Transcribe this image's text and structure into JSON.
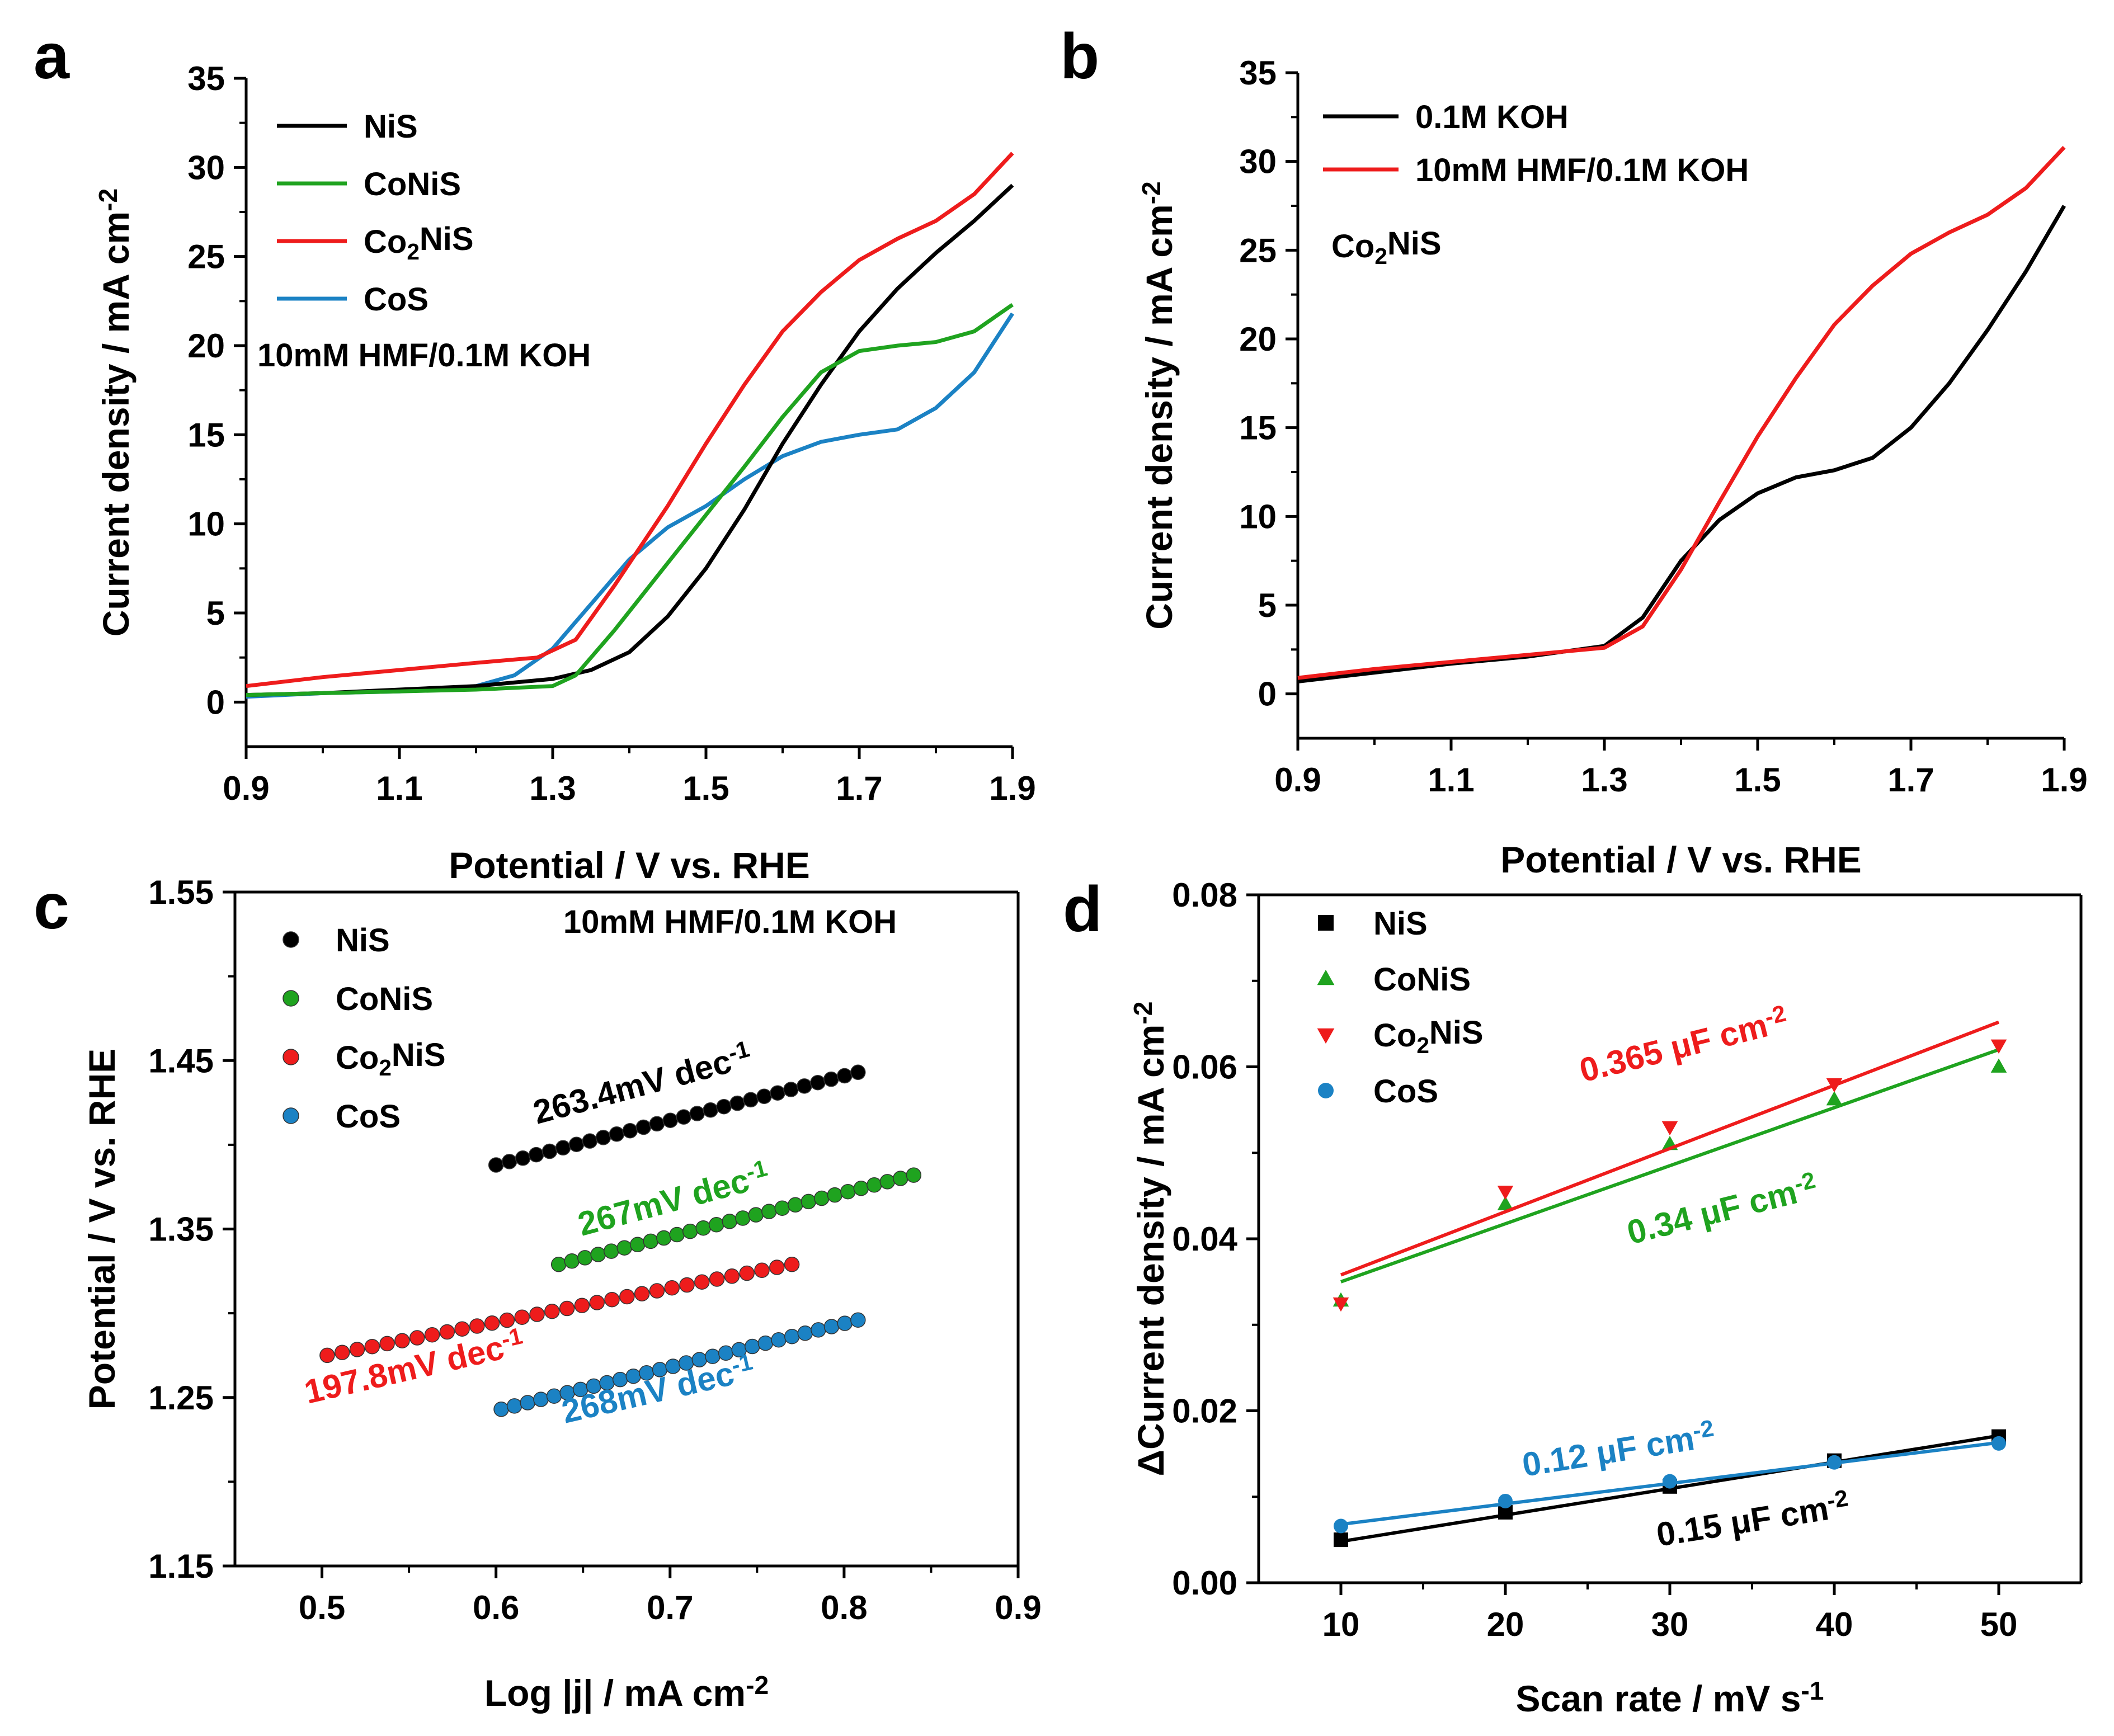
{
  "figure_labels": {
    "a": "a",
    "b": "b",
    "c": "c",
    "d": "d"
  },
  "colors": {
    "NiS": "#000000",
    "CoNiS": "#1fa31f",
    "Co2NiS": "#ee1c1c",
    "CoS": "#1b82c4",
    "KOH": "#000000",
    "HMF": "#ee1c1c"
  },
  "chart_data": [
    {
      "id": "a",
      "type": "line",
      "xlabel": "Potential / V vs. RHE",
      "ylabel": "Current density / mA cm-2",
      "xlim": [
        0.9,
        1.9
      ],
      "ylim": [
        -2.5,
        35
      ],
      "xticks": [
        "0.9",
        "1.1",
        "1.3",
        "1.5",
        "1.7",
        "1.9"
      ],
      "yticks": [
        "0",
        "5",
        "10",
        "15",
        "20",
        "25",
        "30",
        "35"
      ],
      "annotation": "10mM HMF/0.1M KOH",
      "series": [
        {
          "key": "NiS",
          "name": "NiS",
          "x": [
            0.9,
            1.0,
            1.1,
            1.2,
            1.3,
            1.35,
            1.4,
            1.45,
            1.5,
            1.55,
            1.6,
            1.65,
            1.7,
            1.75,
            1.8,
            1.85,
            1.9
          ],
          "y": [
            0.4,
            0.5,
            0.7,
            0.9,
            1.3,
            1.8,
            2.8,
            4.8,
            7.5,
            10.8,
            14.5,
            17.8,
            20.8,
            23.2,
            25.2,
            27.0,
            29.0
          ]
        },
        {
          "key": "CoNiS",
          "name": "CoNiS",
          "x": [
            0.9,
            1.0,
            1.1,
            1.2,
            1.3,
            1.33,
            1.38,
            1.45,
            1.5,
            1.55,
            1.6,
            1.65,
            1.7,
            1.75,
            1.8,
            1.85,
            1.9
          ],
          "y": [
            0.4,
            0.5,
            0.6,
            0.7,
            0.9,
            1.5,
            4.0,
            7.8,
            10.5,
            13.2,
            16.0,
            18.5,
            19.7,
            20.0,
            20.2,
            20.8,
            22.3
          ]
        },
        {
          "key": "Co2NiS",
          "name": "Co₂NiS",
          "x": [
            0.9,
            1.0,
            1.1,
            1.2,
            1.28,
            1.33,
            1.38,
            1.45,
            1.5,
            1.55,
            1.6,
            1.65,
            1.7,
            1.75,
            1.8,
            1.85,
            1.9
          ],
          "y": [
            0.9,
            1.4,
            1.8,
            2.2,
            2.5,
            3.5,
            6.5,
            11.0,
            14.5,
            17.8,
            20.8,
            23.0,
            24.8,
            26.0,
            27.0,
            28.5,
            30.8
          ]
        },
        {
          "key": "CoS",
          "name": "CoS",
          "x": [
            0.9,
            1.0,
            1.1,
            1.2,
            1.25,
            1.3,
            1.35,
            1.4,
            1.45,
            1.5,
            1.55,
            1.6,
            1.65,
            1.7,
            1.75,
            1.8,
            1.85,
            1.9
          ],
          "y": [
            0.3,
            0.5,
            0.6,
            0.9,
            1.5,
            3.0,
            5.5,
            8.0,
            9.8,
            11.0,
            12.5,
            13.8,
            14.6,
            15.0,
            15.3,
            16.5,
            18.5,
            21.8
          ]
        }
      ]
    },
    {
      "id": "b",
      "type": "line",
      "xlabel": "Potential / V vs. RHE",
      "ylabel": "Current density / mA cm-2",
      "xlim": [
        0.9,
        1.9
      ],
      "ylim": [
        -2.5,
        35
      ],
      "xticks": [
        "0.9",
        "1.1",
        "1.3",
        "1.5",
        "1.7",
        "1.9"
      ],
      "yticks": [
        "0",
        "5",
        "10",
        "15",
        "20",
        "25",
        "30",
        "35"
      ],
      "annotation": "Co₂NiS",
      "series": [
        {
          "key": "KOH",
          "name": "0.1M KOH",
          "x": [
            0.9,
            1.0,
            1.1,
            1.2,
            1.3,
            1.35,
            1.4,
            1.45,
            1.5,
            1.55,
            1.6,
            1.65,
            1.7,
            1.75,
            1.8,
            1.85,
            1.9
          ],
          "y": [
            0.7,
            1.2,
            1.7,
            2.1,
            2.7,
            4.3,
            7.5,
            9.8,
            11.3,
            12.2,
            12.6,
            13.3,
            15.0,
            17.5,
            20.5,
            23.8,
            27.5
          ]
        },
        {
          "key": "HMF",
          "name": "10mM HMF/0.1M KOH",
          "x": [
            0.9,
            1.0,
            1.1,
            1.2,
            1.3,
            1.35,
            1.4,
            1.45,
            1.5,
            1.55,
            1.6,
            1.65,
            1.7,
            1.75,
            1.8,
            1.85,
            1.9
          ],
          "y": [
            0.9,
            1.4,
            1.8,
            2.2,
            2.6,
            3.8,
            7.0,
            10.8,
            14.5,
            17.8,
            20.8,
            23.0,
            24.8,
            26.0,
            27.0,
            28.5,
            30.8
          ]
        }
      ]
    },
    {
      "id": "c",
      "type": "scatter",
      "xlabel": "Log |j| / mA cm-2",
      "ylabel": "Potential / V vs. RHE",
      "xlim": [
        0.45,
        0.9
      ],
      "ylim": [
        1.15,
        1.55
      ],
      "xticks": [
        "0.5",
        "0.6",
        "0.7",
        "0.8",
        "0.9"
      ],
      "yticks": [
        "1.15",
        "1.25",
        "1.35",
        "1.45",
        "1.55"
      ],
      "annotation": "10mM HMF/0.1M KOH",
      "series": [
        {
          "key": "NiS",
          "name": "NiS",
          "x_start": 0.6,
          "x_end": 0.808,
          "y_start": 1.388,
          "y_end": 1.443,
          "n": 28,
          "slope_label": "263.4mV dec-1"
        },
        {
          "key": "CoNiS",
          "name": "CoNiS",
          "x_start": 0.636,
          "x_end": 0.84,
          "y_start": 1.329,
          "y_end": 1.382,
          "n": 28,
          "slope_label": "267mV dec-1"
        },
        {
          "key": "Co2NiS",
          "name": "Co₂NiS",
          "x_start": 0.503,
          "x_end": 0.77,
          "y_start": 1.275,
          "y_end": 1.329,
          "n": 32,
          "slope_label": "197.8mV dec-1"
        },
        {
          "key": "CoS",
          "name": "CoS",
          "x_start": 0.603,
          "x_end": 0.808,
          "y_start": 1.243,
          "y_end": 1.296,
          "n": 28,
          "slope_label": "268mV dec-1"
        }
      ]
    },
    {
      "id": "d",
      "type": "scatter",
      "xlabel": "Scan rate / mV s-1",
      "ylabel": "ΔCurrent density / mA cm-2",
      "xlim": [
        5,
        55
      ],
      "ylim": [
        0,
        0.08
      ],
      "xticks": [
        "10",
        "20",
        "30",
        "40",
        "50"
      ],
      "yticks": [
        "0.00",
        "0.02",
        "0.04",
        "0.06",
        "0.08"
      ],
      "x": [
        10,
        20,
        30,
        40,
        50
      ],
      "series": [
        {
          "key": "NiS",
          "name": "NiS",
          "marker": "square",
          "values": [
            0.005,
            0.0082,
            0.0112,
            0.0142,
            0.017
          ],
          "fit": [
            0.0048,
            0.0171
          ],
          "label": "0.15 μF cm-2"
        },
        {
          "key": "CoNiS",
          "name": "CoNiS",
          "marker": "triangle-up",
          "values": [
            0.0328,
            0.044,
            0.051,
            0.0562,
            0.06
          ],
          "fit": [
            0.035,
            0.062
          ],
          "label": "0.34 μF cm-2"
        },
        {
          "key": "Co2NiS",
          "name": "Co₂NiS",
          "marker": "triangle-down",
          "values": [
            0.0325,
            0.0455,
            0.053,
            0.058,
            0.0625
          ],
          "fit": [
            0.0358,
            0.0652
          ],
          "label": "0.365 μF cm-2"
        },
        {
          "key": "CoS",
          "name": "CoS",
          "marker": "circle",
          "values": [
            0.0066,
            0.0095,
            0.0118,
            0.014,
            0.0162
          ],
          "fit": [
            0.0068,
            0.0163
          ],
          "label": "0.12 μF cm-2"
        }
      ]
    }
  ]
}
